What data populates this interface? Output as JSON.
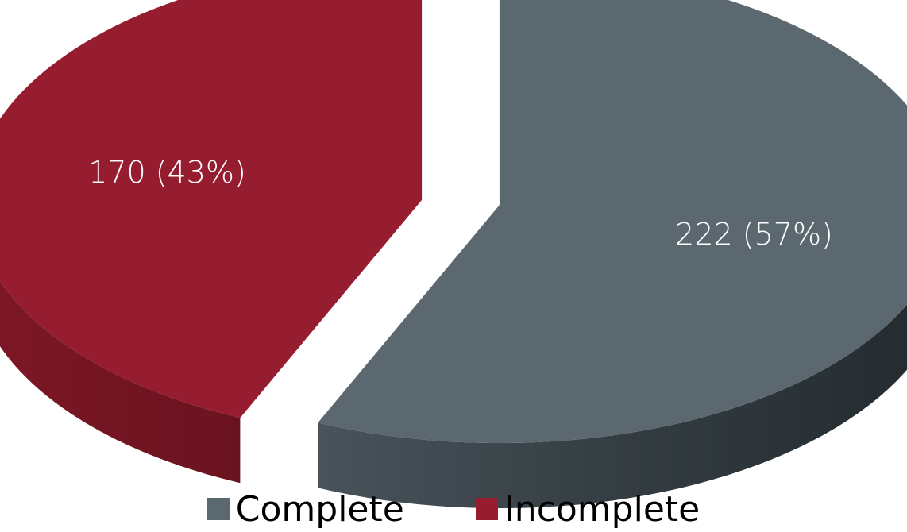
{
  "chart_data": {
    "type": "pie",
    "title": "",
    "categories": [
      "Complete",
      "Incomplete"
    ],
    "values": [
      222,
      170
    ],
    "percentages": [
      57,
      43
    ],
    "data_labels": [
      "222 (57%)",
      "170 (43%)"
    ],
    "colors": [
      "#5c6870",
      "#961c30"
    ],
    "style": "3d-exploded",
    "legend_position": "bottom"
  },
  "legend": {
    "items": [
      {
        "label": "Complete",
        "color": "#5c6870"
      },
      {
        "label": "Incomplete",
        "color": "#961c30"
      }
    ]
  }
}
